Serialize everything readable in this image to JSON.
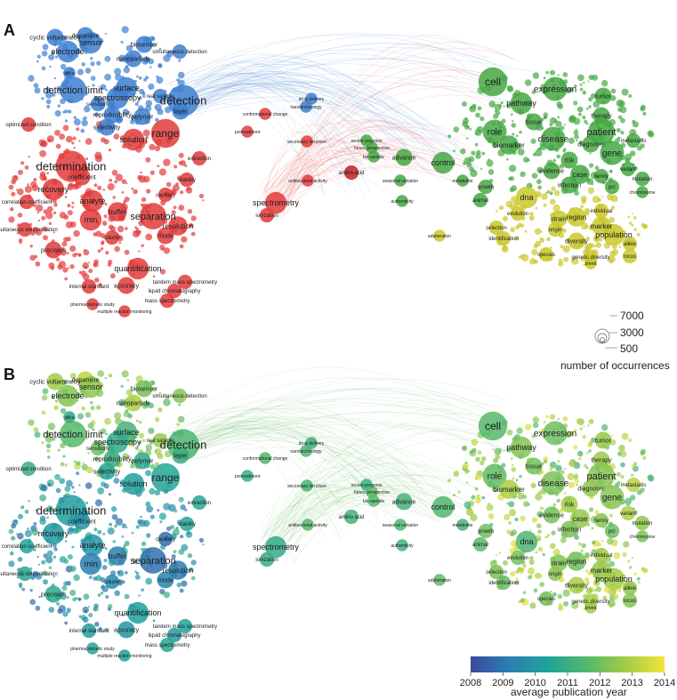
{
  "panels": [
    {
      "letter": "A",
      "coloring": "cluster"
    },
    {
      "letter": "B",
      "coloring": "year"
    }
  ],
  "clusters": {
    "blue": "#3d7fd0",
    "red": "#e23b3b",
    "green": "#45a843",
    "yellow": "#c9c82b",
    "darkred": "#c01f26"
  },
  "keywords": [
    {
      "text": "cyclic voltammetry",
      "cluster": "blue",
      "year": 2012.8,
      "size": 7
    },
    {
      "text": "dopamine",
      "cluster": "blue",
      "year": 2013.2,
      "size": 7
    },
    {
      "text": "sensor",
      "cluster": "blue",
      "year": 2012.5,
      "size": 9
    },
    {
      "text": "electrode",
      "cluster": "blue",
      "year": 2012.3,
      "size": 9
    },
    {
      "text": "biosensor",
      "cluster": "blue",
      "year": 2012.1,
      "size": 7
    },
    {
      "text": "simultaneous detection",
      "cluster": "blue",
      "year": 2012.4,
      "size": 6
    },
    {
      "text": "nanoparticle",
      "cluster": "blue",
      "year": 2012.9,
      "size": 7
    },
    {
      "text": "detection limit",
      "cluster": "blue",
      "year": 2011.6,
      "size": 11
    },
    {
      "text": "surface",
      "cluster": "blue",
      "year": 2011.2,
      "size": 9
    },
    {
      "text": "spectroscopy",
      "cluster": "blue",
      "year": 2010.8,
      "size": 9
    },
    {
      "text": "real sample",
      "cluster": "blue",
      "year": 2012.6,
      "size": 6
    },
    {
      "text": "detection",
      "cluster": "blue",
      "year": 2011.4,
      "size": 13
    },
    {
      "text": "layer",
      "cluster": "blue",
      "year": 2011.0,
      "size": 7
    },
    {
      "text": "reproducibility",
      "cluster": "blue",
      "year": 2010.9,
      "size": 7
    },
    {
      "text": "polymer",
      "cluster": "blue",
      "year": 2010.7,
      "size": 7
    },
    {
      "text": "selectivity",
      "cluster": "blue",
      "year": 2010.6,
      "size": 7
    },
    {
      "text": "optimized condition",
      "cluster": "red",
      "year": 2011.0,
      "size": 6
    },
    {
      "text": "solution",
      "cluster": "red",
      "year": 2010.3,
      "size": 9
    },
    {
      "text": "range",
      "cluster": "red",
      "year": 2010.5,
      "size": 12
    },
    {
      "text": "determination",
      "cluster": "red",
      "year": 2010.2,
      "size": 13
    },
    {
      "text": "coefficient",
      "cluster": "red",
      "year": 2009.8,
      "size": 7
    },
    {
      "text": "recovery",
      "cluster": "red",
      "year": 2010.1,
      "size": 9
    },
    {
      "text": "correlation coefficient",
      "cluster": "red",
      "year": 2010.4,
      "size": 6
    },
    {
      "text": "analyte",
      "cluster": "red",
      "year": 2009.9,
      "size": 9
    },
    {
      "text": "buffer",
      "cluster": "red",
      "year": 2009.3,
      "size": 8
    },
    {
      "text": "separation",
      "cluster": "red",
      "year": 2008.9,
      "size": 11
    },
    {
      "text": "min",
      "cluster": "red",
      "year": 2009.2,
      "size": 9
    },
    {
      "text": "resolution",
      "cluster": "red",
      "year": 2009.1,
      "size": 8
    },
    {
      "text": "simultaneous determination",
      "cluster": "red",
      "year": 2010.6,
      "size": 6
    },
    {
      "text": "precision",
      "cluster": "red",
      "year": 2010.7,
      "size": 7
    },
    {
      "text": "mode",
      "cluster": "red",
      "year": 2009.4,
      "size": 7
    },
    {
      "text": "accuracy",
      "cluster": "red",
      "year": 2010.0,
      "size": 7
    },
    {
      "text": "quantification",
      "cluster": "red",
      "year": 2010.3,
      "size": 9
    },
    {
      "text": "internal standard",
      "cluster": "red",
      "year": 2010.2,
      "size": 6
    },
    {
      "text": "tandem mass spectrometry",
      "cluster": "red",
      "year": 2010.4,
      "size": 6
    },
    {
      "text": "liquid chromatography",
      "cluster": "red",
      "year": 2010.1,
      "size": 6
    },
    {
      "text": "mass spectrometry",
      "cluster": "red",
      "year": 2010.6,
      "size": 6
    },
    {
      "text": "pharmacokinetic study",
      "cluster": "red",
      "year": 2010.5,
      "size": 5
    },
    {
      "text": "multiple reaction monitoring",
      "cluster": "red",
      "year": 2010.3,
      "size": 5
    },
    {
      "text": "spectrometry",
      "cluster": "red",
      "year": 2010.8,
      "size": 9
    },
    {
      "text": "ionization",
      "cluster": "red",
      "year": 2010.9,
      "size": 6
    },
    {
      "text": "conformational change",
      "cluster": "red",
      "year": 2011.5,
      "size": 5
    },
    {
      "text": "secondary structure",
      "cluster": "red",
      "year": 2011.3,
      "size": 5
    },
    {
      "text": "amino acid",
      "cluster": "darkred",
      "year": 2011.2,
      "size": 6
    },
    {
      "text": "cell",
      "cluster": "green",
      "year": 2011.6,
      "size": 12
    },
    {
      "text": "expression",
      "cluster": "green",
      "year": 2012.0,
      "size": 10
    },
    {
      "text": "pathway",
      "cluster": "green",
      "year": 2012.3,
      "size": 9
    },
    {
      "text": "tumor",
      "cluster": "green",
      "year": 2012.6,
      "size": 7
    },
    {
      "text": "role",
      "cluster": "green",
      "year": 2011.8,
      "size": 10
    },
    {
      "text": "tissue",
      "cluster": "green",
      "year": 2012.1,
      "size": 7
    },
    {
      "text": "therapy",
      "cluster": "green",
      "year": 2012.7,
      "size": 7
    },
    {
      "text": "patient",
      "cluster": "green",
      "year": 2012.4,
      "size": 11
    },
    {
      "text": "biomarker",
      "cluster": "green",
      "year": 2012.9,
      "size": 8
    },
    {
      "text": "disease",
      "cluster": "green",
      "year": 2012.2,
      "size": 10
    },
    {
      "text": "diagnosis",
      "cluster": "green",
      "year": 2012.5,
      "size": 7
    },
    {
      "text": "metastasis",
      "cluster": "green",
      "year": 2013.1,
      "size": 6
    },
    {
      "text": "risk",
      "cluster": "green",
      "year": 2012.8,
      "size": 7
    },
    {
      "text": "gene",
      "cluster": "green",
      "year": 2012.3,
      "size": 10
    },
    {
      "text": "control",
      "cluster": "green",
      "year": 2011.5,
      "size": 9
    },
    {
      "text": "evidence",
      "cluster": "green",
      "year": 2012.1,
      "size": 7
    },
    {
      "text": "case",
      "cluster": "green",
      "year": 2012.6,
      "size": 8
    },
    {
      "text": "family",
      "cluster": "green",
      "year": 2012.4,
      "size": 6
    },
    {
      "text": "variant",
      "cluster": "green",
      "year": 2013.0,
      "size": 6
    },
    {
      "text": "infection",
      "cluster": "green",
      "year": 2012.2,
      "size": 7
    },
    {
      "text": "pcr",
      "cluster": "green",
      "year": 2011.9,
      "size": 6
    },
    {
      "text": "chromosome",
      "cluster": "green",
      "year": 2012.2,
      "size": 5
    },
    {
      "text": "dna",
      "cluster": "yellow",
      "year": 2011.4,
      "size": 9
    },
    {
      "text": "mutation",
      "cluster": "green",
      "year": 2012.5,
      "size": 6
    },
    {
      "text": "individual",
      "cluster": "yellow",
      "year": 2012.7,
      "size": 6
    },
    {
      "text": "evolution",
      "cluster": "yellow",
      "year": 2012.1,
      "size": 6
    },
    {
      "text": "strain",
      "cluster": "yellow",
      "year": 2012.3,
      "size": 7
    },
    {
      "text": "region",
      "cluster": "yellow",
      "year": 2012.0,
      "size": 8
    },
    {
      "text": "marker",
      "cluster": "yellow",
      "year": 2012.6,
      "size": 8
    },
    {
      "text": "selection",
      "cluster": "yellow",
      "year": 2012.2,
      "size": 6
    },
    {
      "text": "origin",
      "cluster": "yellow",
      "year": 2012.4,
      "size": 6
    },
    {
      "text": "population",
      "cluster": "yellow",
      "year": 2012.8,
      "size": 9
    },
    {
      "text": "diversity",
      "cluster": "yellow",
      "year": 2012.9,
      "size": 7
    },
    {
      "text": "allele",
      "cluster": "yellow",
      "year": 2012.5,
      "size": 6
    },
    {
      "text": "locus",
      "cluster": "yellow",
      "year": 2012.3,
      "size": 6
    },
    {
      "text": "species",
      "cluster": "yellow",
      "year": 2012.1,
      "size": 6
    },
    {
      "text": "genetic diversity",
      "cluster": "yellow",
      "year": 2013.0,
      "size": 6
    },
    {
      "text": "breed",
      "cluster": "yellow",
      "year": 2012.7,
      "size": 5
    },
    {
      "text": "identification",
      "cluster": "yellow",
      "year": 2011.9,
      "size": 6
    },
    {
      "text": "advance",
      "cluster": "green",
      "year": 2011.3,
      "size": 7
    },
    {
      "text": "recent progress",
      "cluster": "green",
      "year": 2011.0,
      "size": 5
    },
    {
      "text": "future perspective",
      "cluster": "green",
      "year": 2011.7,
      "size": 5
    },
    {
      "text": "authenticity",
      "cluster": "green",
      "year": 2011.2,
      "size": 5
    },
    {
      "text": "adulteration",
      "cluster": "yellow",
      "year": 2011.8,
      "size": 5
    },
    {
      "text": "drug delivery",
      "cluster": "blue",
      "year": 2011.1,
      "size": 5
    },
    {
      "text": "nanotechnology",
      "cluster": "blue",
      "year": 2011.4,
      "size": 5
    },
    {
      "text": "antibacterial activity",
      "cluster": "red",
      "year": 2011.6,
      "size": 5
    },
    {
      "text": "metabolite",
      "cluster": "green",
      "year": 2011.3,
      "size": 5
    },
    {
      "text": "growth",
      "cluster": "green",
      "year": 2012.0,
      "size": 6
    },
    {
      "text": "animal",
      "cluster": "green",
      "year": 2011.7,
      "size": 6
    },
    {
      "text": "seasonal variation",
      "cluster": "green",
      "year": 2011.5,
      "size": 5
    },
    {
      "text": "bio sample",
      "cluster": "green",
      "year": 2011.6,
      "size": 5
    },
    {
      "text": "sensitivity",
      "cluster": "blue",
      "year": 2012.0,
      "size": 6
    },
    {
      "text": "silica",
      "cluster": "blue",
      "year": 2010.8,
      "size": 5
    },
    {
      "text": "stability",
      "cluster": "red",
      "year": 2010.5,
      "size": 6
    },
    {
      "text": "capillary",
      "cluster": "red",
      "year": 2008.8,
      "size": 6
    },
    {
      "text": "column",
      "cluster": "red",
      "year": 2009.5,
      "size": 6
    },
    {
      "text": "extraction",
      "cluster": "red",
      "year": 2010.6,
      "size": 6
    },
    {
      "text": "pretreatment",
      "cluster": "red",
      "year": 2010.9,
      "size": 5
    }
  ],
  "legend": {
    "size_values": [
      "7000",
      "3000",
      "500"
    ],
    "size_title": "number of occurrences"
  },
  "colorbar": {
    "ticks": [
      "2008",
      "2009",
      "2010",
      "2011",
      "2012",
      "2013",
      "2014"
    ],
    "title": "average publication year",
    "colors": [
      "#3a4a9c",
      "#2a7fb3",
      "#1fa39a",
      "#55b86b",
      "#a2cc47",
      "#f2e43a"
    ]
  }
}
